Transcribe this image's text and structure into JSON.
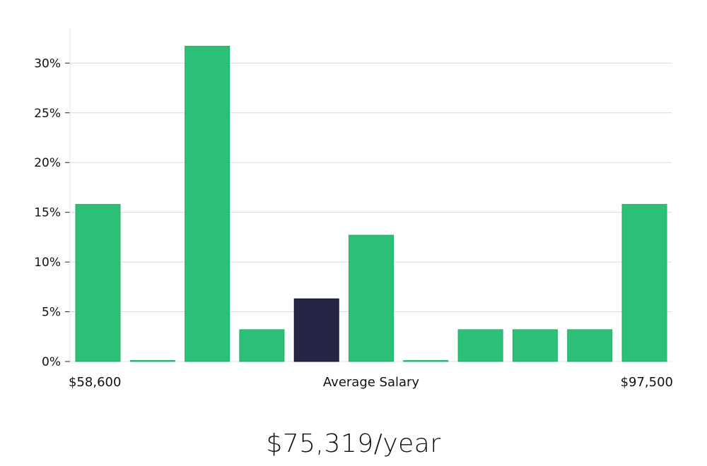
{
  "chart_data": {
    "type": "bar",
    "title": "",
    "xlabel": "Average Salary",
    "ylabel": "",
    "x_min_label": "$58,600",
    "x_max_label": "$97,500",
    "ylim": [
      0,
      33.5
    ],
    "yticks": [
      0,
      5,
      10,
      15,
      20,
      25,
      30
    ],
    "ytick_labels": [
      "0%",
      "5%",
      "10%",
      "15%",
      "20%",
      "25%",
      "30%"
    ],
    "values": [
      15.8,
      0.1,
      31.7,
      3.2,
      6.3,
      12.7,
      0.1,
      3.2,
      3.2,
      3.2,
      15.8
    ],
    "highlight_index": 4,
    "colors": {
      "bar": "#2bbf77",
      "bar_edge": "#22b06b",
      "highlight": "#262545",
      "grid": "#dcdcdc"
    },
    "grid": true
  },
  "summary": {
    "average_salary": "$75,319/year"
  }
}
